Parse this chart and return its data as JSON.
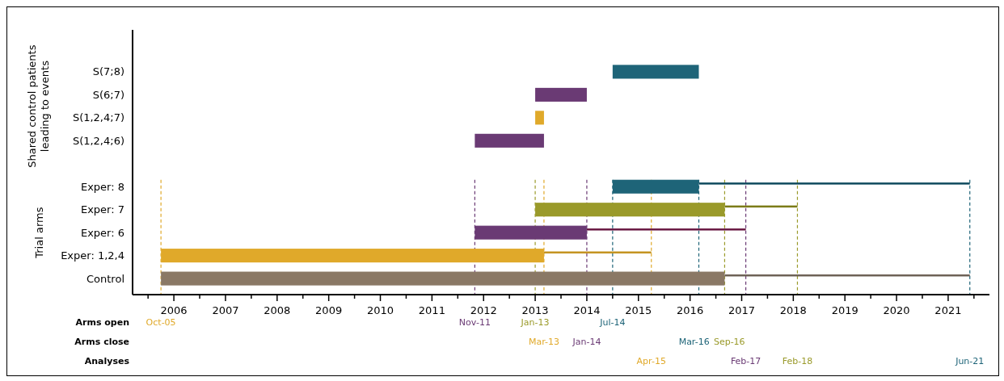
{
  "chart_data": {
    "type": "bar",
    "orientation": "horizontal",
    "categories": [
      "S(7;8)",
      "S(6;7)",
      "S(1,2,4;7)",
      "S(1,2,4;6)",
      null,
      "Exper: 8",
      "Exper: 7",
      "Exper: 6",
      "Exper: 1,2,4",
      "Control"
    ],
    "series": [
      {
        "colors": [
          "#1e6478",
          "#6a3a74",
          "#e0a92a",
          "#6a3a74",
          null,
          "#1e6478",
          "#9a9a2a",
          "#6a3a74",
          "#e0a92a",
          "#8a7865"
        ],
        "base": [
          2014.5,
          2013.0,
          2013.0,
          2011.83,
          null,
          2014.5,
          2013.0,
          2011.83,
          2005.75,
          2005.75
        ],
        "values": [
          1.67,
          1.0,
          0.17,
          1.34,
          null,
          1.67,
          3.67,
          2.17,
          7.42,
          10.92
        ]
      },
      {
        "colors": [
          null,
          null,
          null,
          null,
          null,
          "#104a5e",
          "#7c7c18",
          "#6a1a44",
          "#c49422",
          "#6e6256"
        ],
        "base": [
          null,
          null,
          null,
          null,
          null,
          2016.17,
          2016.67,
          2014.0,
          2013.17,
          2016.67
        ],
        "values": [
          null,
          null,
          null,
          null,
          null,
          5.25,
          1.41,
          3.08,
          2.08,
          4.75
        ]
      }
    ],
    "xlim": [
      2005.2,
      2021.8
    ],
    "xticks": [
      {
        "value": 2005.5,
        "label": null
      },
      2006,
      {
        "value": 2006.5,
        "label": null
      },
      2007,
      {
        "value": 2007.5,
        "label": null
      },
      2008,
      {
        "value": 2008.5,
        "label": null
      },
      2009,
      {
        "value": 2009.5,
        "label": null
      },
      2010,
      {
        "value": 2010.5,
        "label": null
      },
      2011,
      {
        "value": 2011.5,
        "label": null
      },
      2012,
      {
        "value": 2012.5,
        "label": null
      },
      2013,
      {
        "value": 2013.5,
        "label": null
      },
      2014,
      {
        "value": 2014.5,
        "label": null
      },
      2015,
      {
        "value": 2015.5,
        "label": null
      },
      2016,
      {
        "value": 2016.5,
        "label": null
      },
      2017,
      {
        "value": 2017.5,
        "label": null
      },
      2018,
      {
        "value": 2018.5,
        "label": null
      },
      2019,
      {
        "value": 2019.5,
        "label": null
      },
      2020,
      {
        "value": 2020.5,
        "label": null
      },
      2021,
      {
        "value": 2021.5,
        "label": null
      }
    ],
    "annotations": [
      "Shared control patients leading to events",
      "Trial arms",
      "Arms open",
      "Arms close",
      "Analyses"
    ],
    "ref_lines": [
      {
        "axis": "x",
        "value": 2005.75,
        "label": "Oct-05",
        "color": "#e0a92a",
        "line_style": "dashed"
      },
      {
        "axis": "x",
        "value": 2011.83,
        "label": "Nov-11",
        "color": "#6a3a74",
        "line_style": "dashed"
      },
      {
        "axis": "x",
        "value": 2013.0,
        "label": "Jan-13",
        "color": "#9a9a2a",
        "line_style": "dashed"
      },
      {
        "axis": "x",
        "value": 2014.5,
        "label": "Jul-14",
        "color": "#1e6478",
        "line_style": "dashed"
      },
      {
        "axis": "x",
        "value": 2013.17,
        "label": "Mar-13",
        "color": "#e0a92a",
        "line_style": "dashed"
      },
      {
        "axis": "x",
        "value": 2014.0,
        "label": "Jan-14",
        "color": "#6a3a74",
        "line_style": "dashed"
      },
      {
        "axis": "x",
        "value": 2016.17,
        "label": "Mar-16",
        "color": "#1e6478",
        "line_style": "dashed"
      },
      {
        "axis": "x",
        "value": 2016.67,
        "label": "Sep-16",
        "color": "#9a9a2a",
        "line_style": "dashed"
      },
      {
        "axis": "x",
        "value": 2015.25,
        "label": "Apr-15",
        "color": "#e0a92a",
        "line_style": "dashed"
      },
      {
        "axis": "x",
        "value": 2017.08,
        "label": "Feb-17",
        "color": "#6a3a74",
        "line_style": "dashed"
      },
      {
        "axis": "x",
        "value": 2018.08,
        "label": "Feb-18",
        "color": "#9a9a2a",
        "line_style": "dashed"
      },
      {
        "axis": "x",
        "value": 2021.42,
        "label": "Jun-21",
        "color": "#1e6478",
        "line_style": "dashed"
      }
    ]
  }
}
